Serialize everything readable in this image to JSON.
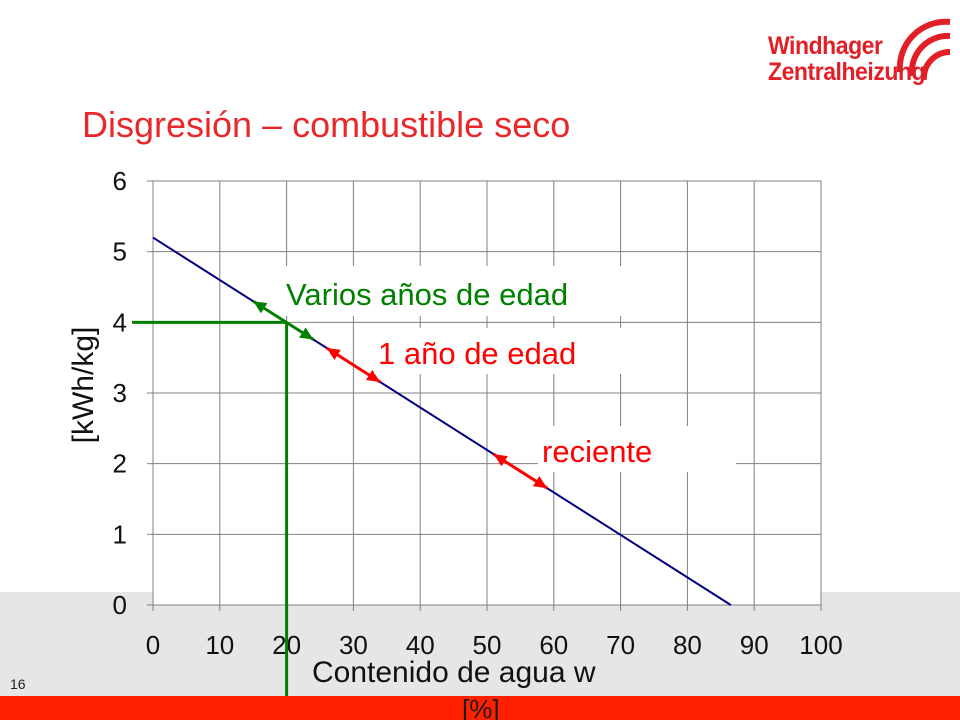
{
  "title": "Disgresión – combustible seco",
  "logo": {
    "line1": "Windhager",
    "line2": "Zentralheizung"
  },
  "page_number": "16",
  "footer_unit_text": "[%]",
  "chart_data": {
    "type": "line",
    "title": "Disgresión – combustible seco",
    "xlabel": "Contenido de agua w",
    "ylabel": "[kWh/kg]",
    "x_unit_label": "[%]",
    "xlim": [
      0,
      100
    ],
    "ylim": [
      0,
      6
    ],
    "x_ticks": [
      0,
      10,
      20,
      30,
      40,
      50,
      60,
      70,
      80,
      90,
      100
    ],
    "y_ticks": [
      0,
      1,
      2,
      3,
      4,
      5,
      6
    ],
    "grid": true,
    "series": [
      {
        "x": [
          0,
          86.5
        ],
        "y": [
          5.2,
          0
        ],
        "color": "#000080"
      }
    ],
    "reference_lines": {
      "color": "#008000",
      "vertical_x": 20,
      "horizontal_y": 4
    },
    "ranges": [
      {
        "label": "Varios años de edad",
        "x": [
          15,
          24
        ],
        "color": "#008000"
      },
      {
        "label": "1 año de edad",
        "x": [
          26,
          34
        ],
        "color": "#ff0000"
      },
      {
        "label": "reciente",
        "x": [
          51,
          59
        ],
        "color": "#ff0000"
      }
    ]
  },
  "colors": {
    "title": "#e8282a",
    "footer": "#ff2000",
    "band": "#e6e6e6"
  }
}
